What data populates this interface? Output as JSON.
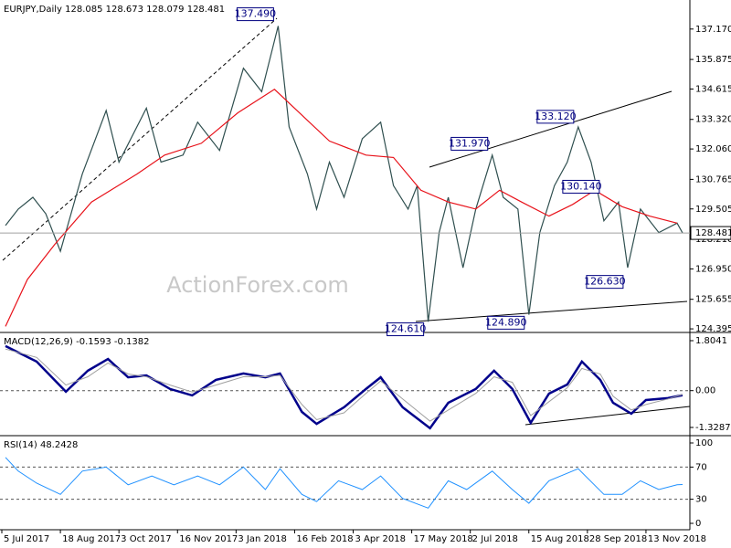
{
  "chart_data": [
    {
      "type": "line",
      "title": "EURJPY,Daily  128.085 128.673 128.079 128.481",
      "watermark": "ActionForex.com",
      "xlim": [
        0,
        376
      ],
      "ylim": [
        124.32,
        138.33
      ],
      "yticks": [
        {
          "value": 137.17,
          "label": "137.170"
        },
        135.875,
        134.615,
        {
          "value": 133.32,
          "label": "133.320"
        },
        {
          "value": 132.06,
          "label": "132.060"
        },
        130.765,
        129.505,
        {
          "value": 128.21,
          "label": "128.210"
        },
        {
          "value": 126.95,
          "label": "126.950"
        },
        125.655,
        124.395
      ],
      "series": [
        {
          "color": "#2f4f4f",
          "x": [
            2,
            9,
            17,
            24,
            32,
            44,
            57,
            64,
            79,
            87,
            99,
            107,
            119,
            132,
            142,
            151,
            157,
            167,
            172,
            179,
            187,
            197,
            207,
            214,
            222,
            227,
            233,
            239,
            244,
            252,
            259,
            268,
            274,
            282,
            288,
            294,
            302,
            309,
            315,
            322,
            329,
            337,
            342,
            349,
            359,
            369,
            372
          ],
          "values": [
            128.8,
            129.5,
            130,
            129.3,
            127.7,
            131,
            133.7,
            131.5,
            133.8,
            131.5,
            131.8,
            133.2,
            132,
            135.5,
            134.5,
            137.3,
            133,
            131,
            129.5,
            131.5,
            130,
            132.5,
            133.2,
            130.5,
            129.5,
            130.5,
            124.7,
            128.5,
            130,
            127,
            129.5,
            131.8,
            130,
            129.5,
            125,
            128.5,
            130.5,
            131.5,
            133,
            131.5,
            129,
            129.8,
            127,
            129.5,
            128.5,
            128.9,
            128.481
          ]
        },
        {
          "color": "#e8121a",
          "x": [
            2,
            14,
            29,
            49,
            74,
            89,
            109,
            129,
            149,
            164,
            179,
            199,
            214,
            229,
            244,
            259,
            272,
            284,
            299,
            312,
            324,
            339,
            354,
            369
          ],
          "values": [
            124.5,
            126.5,
            128,
            129.8,
            131,
            131.8,
            132.3,
            133.6,
            134.6,
            133.5,
            132.4,
            131.8,
            131.7,
            130.3,
            129.8,
            129.5,
            130.3,
            129.8,
            129.2,
            129.7,
            130.3,
            129.6,
            129.2,
            128.9
          ]
        }
      ],
      "annotations": [
        {
          "x": 151,
          "value": 137.49,
          "label": "137.490"
        },
        {
          "x": 268,
          "value": 131.97,
          "label": "131.970"
        },
        {
          "x": 315,
          "value": 133.12,
          "label": "133.120"
        },
        {
          "x": 329,
          "value": 130.14,
          "label": "130.140"
        },
        {
          "x": 342,
          "value": 126.63,
          "label": "126.630"
        },
        {
          "x": 233,
          "value": 124.61,
          "label": "124.610"
        },
        {
          "x": 288,
          "value": 124.89,
          "label": "124.890"
        }
      ]
    },
    {
      "type": "line",
      "title": "MACD(12,26,9) -0.1593 -0.1382",
      "xlim": [
        0,
        376
      ],
      "ylim": [
        -1.593,
        2.035
      ],
      "yticks": [
        1.8041,
        {
          "value": 0,
          "label": "0.00"
        },
        -1.3287
      ],
      "levels": [
        0
      ],
      "series": [
        {
          "color": "#00008b",
          "width": 2.5,
          "x": [
            2,
            19,
            35,
            47,
            58,
            69,
            79,
            92,
            104,
            117,
            132,
            144,
            152,
            164,
            172,
            187,
            199,
            207,
            219,
            234,
            244,
            259,
            269,
            279,
            289,
            299,
            309,
            317,
            327,
            334,
            344,
            352,
            364,
            372
          ],
          "values": [
            1.61,
            1.05,
            -0.04,
            0.72,
            1.14,
            0.48,
            0.55,
            0.06,
            -0.17,
            0.39,
            0.62,
            0.48,
            0.62,
            -0.77,
            -1.2,
            -0.6,
            0.06,
            0.48,
            -0.6,
            -1.36,
            -0.44,
            0.06,
            0.72,
            0.06,
            -1.16,
            -0.11,
            0.22,
            1.05,
            0.39,
            -0.44,
            -0.83,
            -0.34,
            -0.27,
            -0.16
          ]
        },
        {
          "color": "#a0a0a0",
          "width": 1,
          "x": [
            2,
            19,
            35,
            47,
            58,
            69,
            79,
            92,
            104,
            117,
            132,
            144,
            152,
            164,
            172,
            187,
            199,
            207,
            219,
            234,
            244,
            259,
            269,
            279,
            289,
            299,
            309,
            317,
            327,
            334,
            344,
            352,
            364,
            372
          ],
          "values": [
            1.5,
            1.2,
            0.2,
            0.5,
            1.0,
            0.6,
            0.5,
            0.2,
            -0.05,
            0.2,
            0.5,
            0.5,
            0.55,
            -0.5,
            -1.05,
            -0.8,
            -0.1,
            0.35,
            -0.3,
            -1.1,
            -0.7,
            -0.1,
            0.5,
            0.3,
            -0.9,
            -0.4,
            0.1,
            0.8,
            0.6,
            -0.2,
            -0.7,
            -0.5,
            -0.3,
            -0.14
          ]
        }
      ]
    },
    {
      "type": "line",
      "title": "RSI(14) 48.2428",
      "xlim": [
        0,
        376
      ],
      "ylim": [
        -6.8,
        106.8
      ],
      "yticks": [
        100,
        70,
        30,
        0
      ],
      "levels": [
        70,
        30
      ],
      "xticks": [
        {
          "value": 0,
          "label": "5 Jul 2017"
        },
        {
          "value": 32,
          "label": "18 Aug 2017"
        },
        {
          "value": 64,
          "label": "3 Oct 2017"
        },
        {
          "value": 96,
          "label": "16 Nov 2017"
        },
        {
          "value": 128,
          "label": "3 Jan 2018"
        },
        {
          "value": 160,
          "label": "16 Feb 2018"
        },
        {
          "value": 192,
          "label": "3 Apr 2018"
        },
        {
          "value": 224,
          "label": "17 May 2018"
        },
        {
          "value": 256,
          "label": "2 Jul 2018"
        },
        {
          "value": 288,
          "label": "15 Aug 2018"
        },
        {
          "value": 320,
          "label": "28 Sep 2018"
        },
        {
          "value": 352,
          "label": "13 Nov 2018"
        }
      ],
      "series": [
        {
          "color": "#1e90ff",
          "width": 1,
          "x": [
            2,
            9,
            19,
            32,
            44,
            57,
            69,
            82,
            94,
            107,
            119,
            132,
            144,
            152,
            164,
            172,
            184,
            197,
            207,
            219,
            233,
            244,
            254,
            268,
            279,
            288,
            299,
            315,
            329,
            339,
            349,
            359,
            369,
            372
          ],
          "values": [
            82,
            65,
            50,
            36,
            65,
            70,
            48,
            59,
            48,
            59,
            48,
            70,
            42,
            68,
            36,
            27,
            53,
            42,
            59,
            31,
            19,
            53,
            42,
            65,
            42,
            25,
            53,
            68,
            36,
            36,
            53,
            42,
            48,
            48.2428
          ]
        }
      ]
    }
  ]
}
